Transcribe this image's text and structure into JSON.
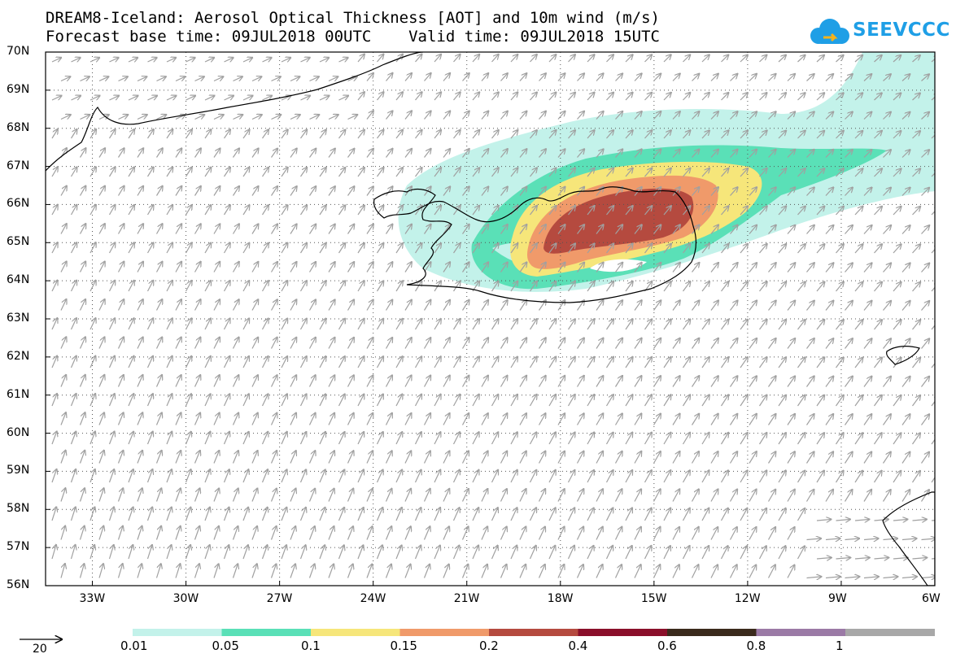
{
  "header": {
    "title_line1": "DREAM8-Iceland: Aerosol Optical Thickness [AOT] and 10m wind (m/s)",
    "title_line2": "Forecast base time: 09JUL2018 00UTC    Valid time: 09JUL2018 15UTC",
    "logo_text": "SEEVCCC"
  },
  "map": {
    "lat_labels": [
      "70N",
      "69N",
      "68N",
      "67N",
      "66N",
      "65N",
      "64N",
      "63N",
      "62N",
      "61N",
      "60N",
      "59N",
      "58N",
      "57N",
      "56N"
    ],
    "lon_labels": [
      "33W",
      "30W",
      "27W",
      "24W",
      "21W",
      "18W",
      "15W",
      "12W",
      "9W",
      "6W"
    ],
    "lat_range": [
      56,
      70
    ],
    "lon_range": [
      -34.5,
      -6
    ],
    "wind_arrow_color": "#a0a0a0"
  },
  "legend": {
    "reference_vector_label": "20",
    "colorbar_labels": [
      "0.01",
      "0.05",
      "0.1",
      "0.15",
      "0.2",
      "0.4",
      "0.6",
      "0.8",
      "1"
    ],
    "colorbar_colors": [
      "#c3f2ea",
      "#5ae0b7",
      "#f6e67a",
      "#f09a6a",
      "#b54a3f",
      "#8a0f2a",
      "#3a2a1c",
      "#9b7aa6",
      "#a8a8a8"
    ]
  },
  "aot_levels": [
    {
      "threshold": "0.01",
      "color": "#c3f2ea"
    },
    {
      "threshold": "0.05",
      "color": "#5ae0b7"
    },
    {
      "threshold": "0.1",
      "color": "#f6e67a"
    },
    {
      "threshold": "0.15",
      "color": "#f09a6a"
    },
    {
      "threshold": "0.2",
      "color": "#b54a3f"
    }
  ]
}
